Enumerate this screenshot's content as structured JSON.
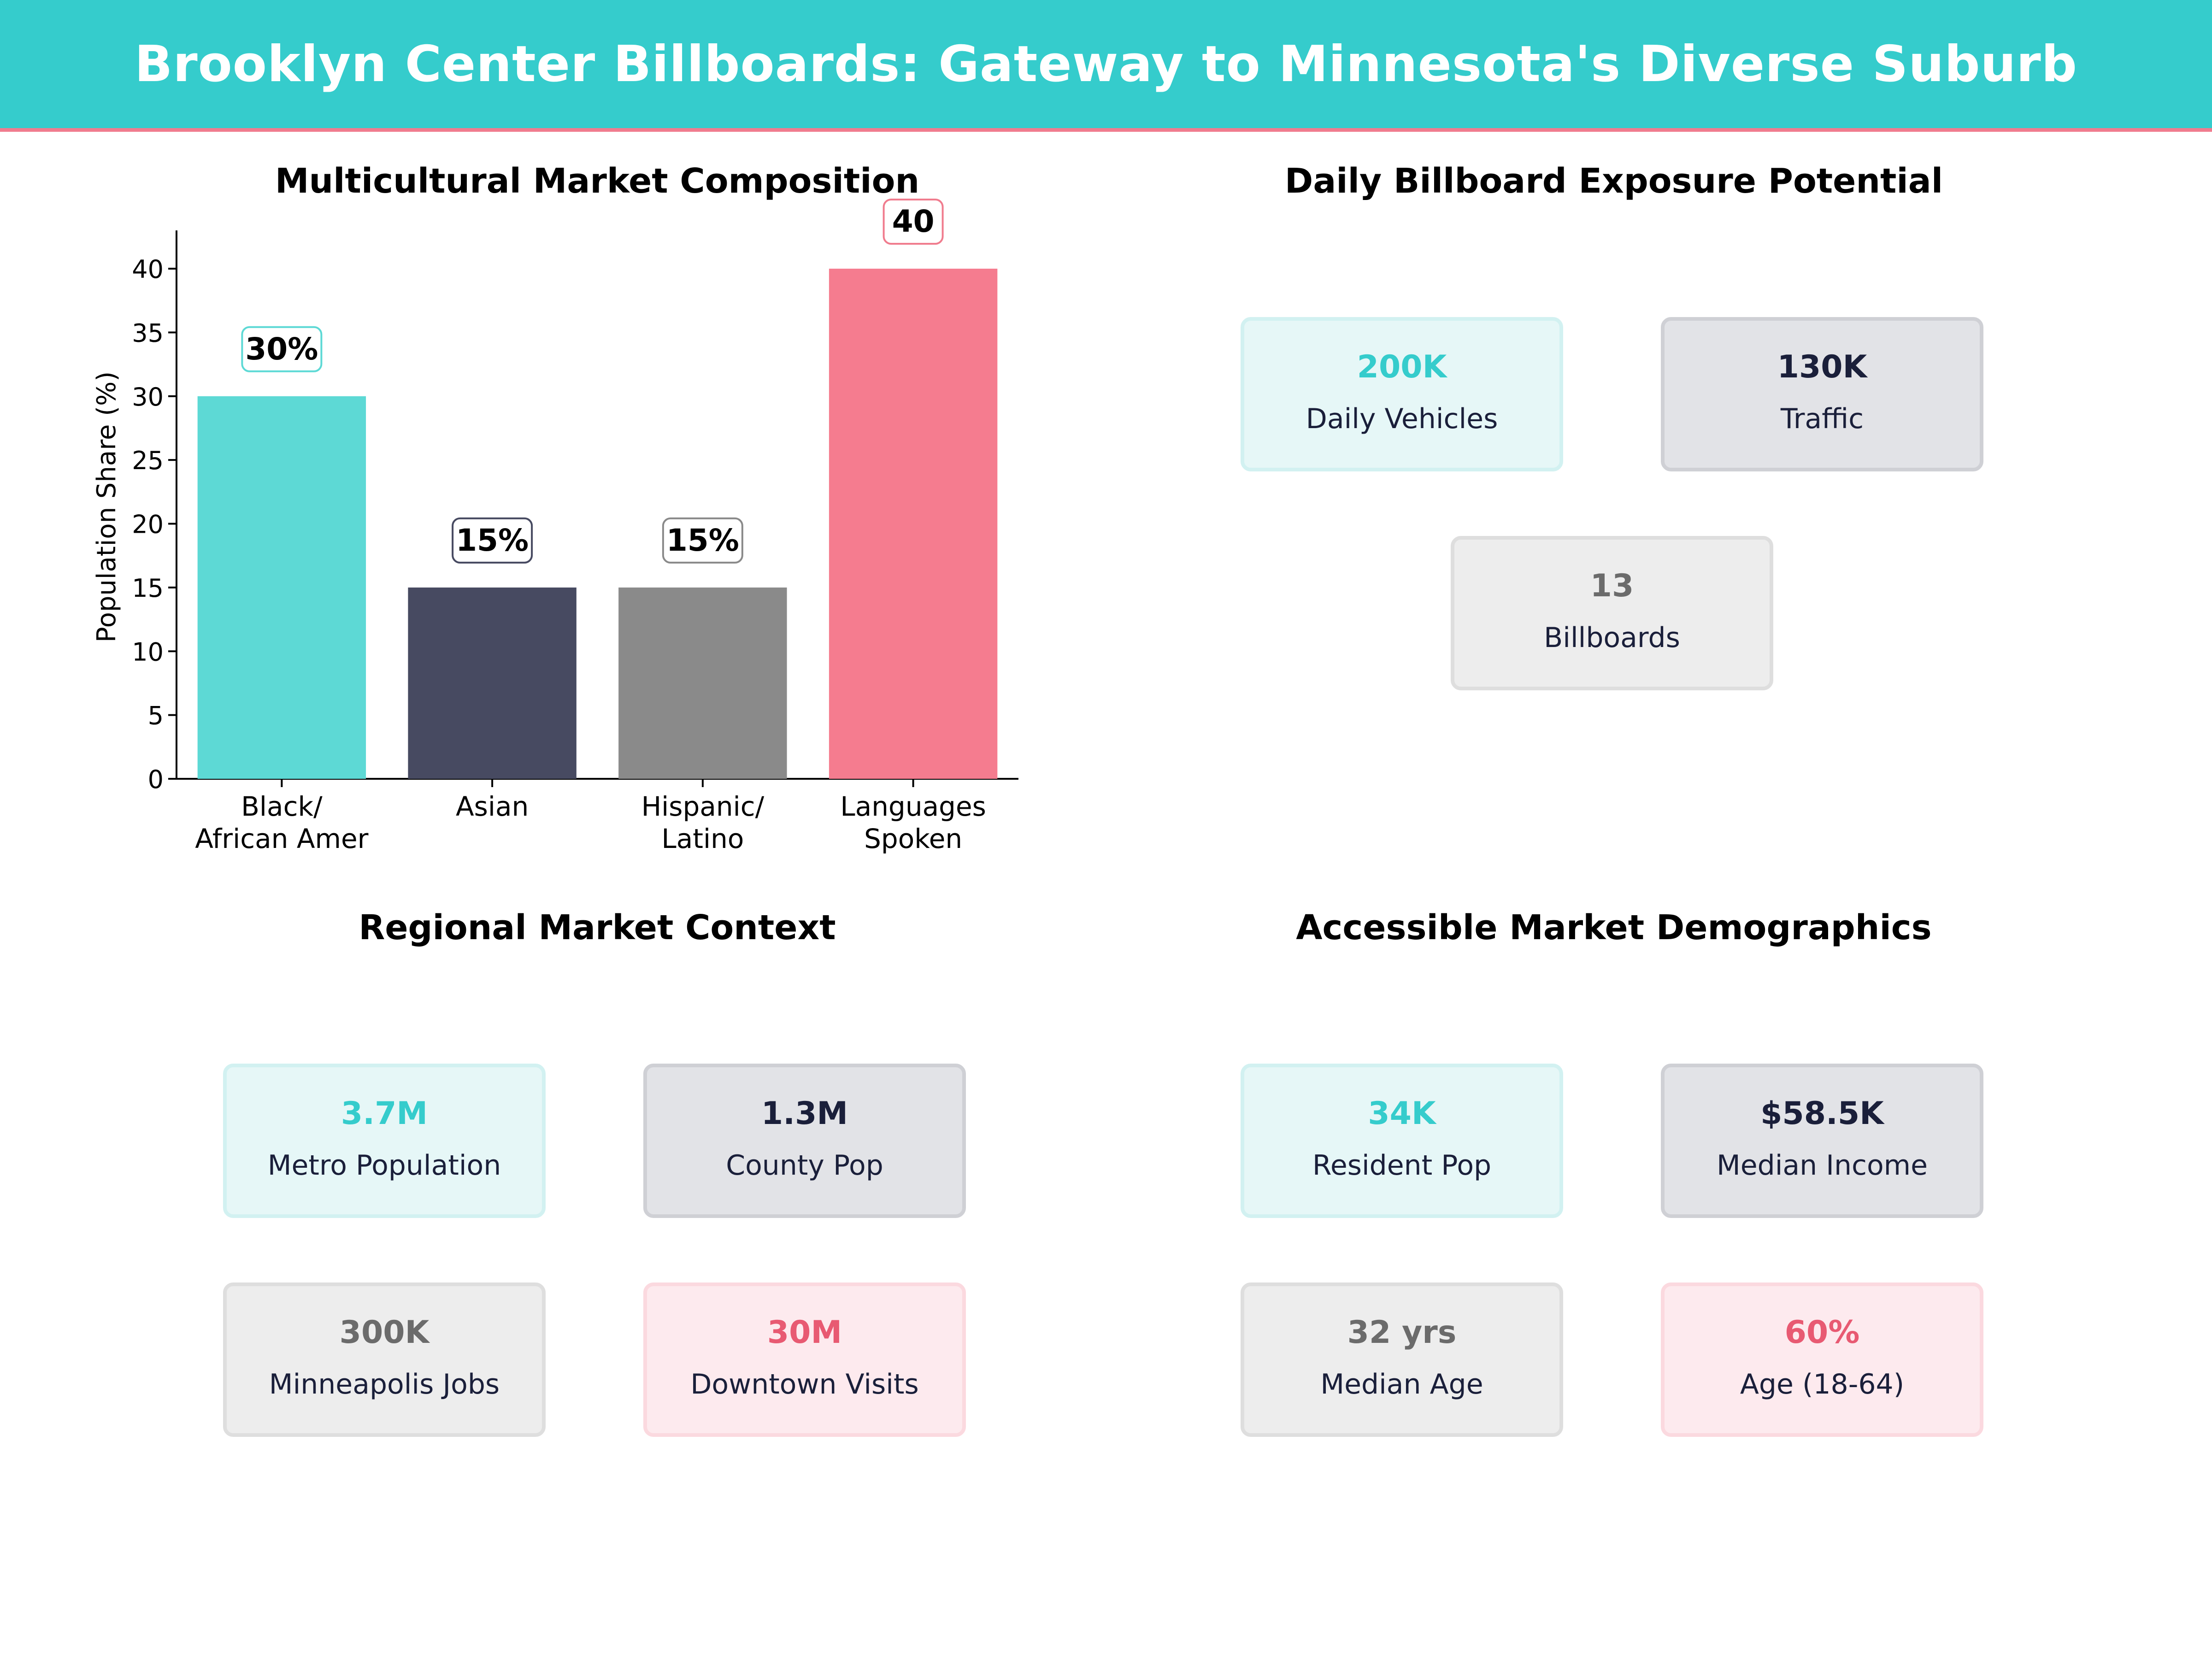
{
  "header": {
    "title": "Brooklyn Center Billboards: Gateway to Minnesota's Diverse Suburb"
  },
  "colors": {
    "teal": "#35cccc",
    "navy": "#474a61",
    "gray": "#8a8a8a",
    "pink": "#f57c8f",
    "dark_text": "#1a1f3a"
  },
  "panels": {
    "composition": {
      "title": "Multicultural Market Composition"
    },
    "exposure": {
      "title": "Daily Billboard Exposure Potential",
      "cards": [
        {
          "value": "200K",
          "label": "Daily Vehicles",
          "color": "#35cccc",
          "style": "teal"
        },
        {
          "value": "130K",
          "label": "Traffic",
          "color": "#1a1f3a",
          "style": "navy"
        },
        {
          "value": "13",
          "label": "Billboards",
          "color": "#6b6b6b",
          "style": "gray"
        }
      ]
    },
    "regional": {
      "title": "Regional Market Context",
      "cards": [
        {
          "value": "3.7M",
          "label": "Metro Population",
          "color": "#35cccc",
          "style": "teal"
        },
        {
          "value": "1.3M",
          "label": "County Pop",
          "color": "#1a1f3a",
          "style": "navy"
        },
        {
          "value": "300K",
          "label": "Minneapolis Jobs",
          "color": "#6b6b6b",
          "style": "gray"
        },
        {
          "value": "30M",
          "label": "Downtown Visits",
          "color": "#e85a72",
          "style": "pink"
        }
      ]
    },
    "demographics": {
      "title": "Accessible Market Demographics",
      "cards": [
        {
          "value": "34K",
          "label": "Resident Pop",
          "color": "#35cccc",
          "style": "teal"
        },
        {
          "value": "$58.5K",
          "label": "Median Income",
          "color": "#1a1f3a",
          "style": "navy"
        },
        {
          "value": "32 yrs",
          "label": "Median Age",
          "color": "#6b6b6b",
          "style": "gray"
        },
        {
          "value": "60%",
          "label": "Age (18-64)",
          "color": "#e85a72",
          "style": "pink"
        }
      ]
    }
  },
  "chart_data": {
    "type": "bar",
    "title": "Multicultural Market Composition",
    "xlabel": "",
    "ylabel": "Population Share (%)",
    "ylim": [
      0,
      43
    ],
    "yticks": [
      0,
      5,
      10,
      15,
      20,
      25,
      30,
      35,
      40
    ],
    "categories": [
      [
        "Black/",
        "African Amer"
      ],
      [
        "Asian"
      ],
      [
        "Hispanic/",
        "Latino"
      ],
      [
        "Languages",
        "Spoken"
      ]
    ],
    "values": [
      30,
      15,
      15,
      40
    ],
    "data_labels": [
      "30%",
      "15%",
      "15%",
      "40"
    ],
    "bar_colors": [
      "#5dd9d5",
      "#474a61",
      "#8a8a8a",
      "#f57c8f"
    ],
    "label_border_colors": [
      "#5dd9d5",
      "#474a61",
      "#8a8a8a",
      "#f07c8e"
    ],
    "grid": false,
    "legend": "none"
  }
}
